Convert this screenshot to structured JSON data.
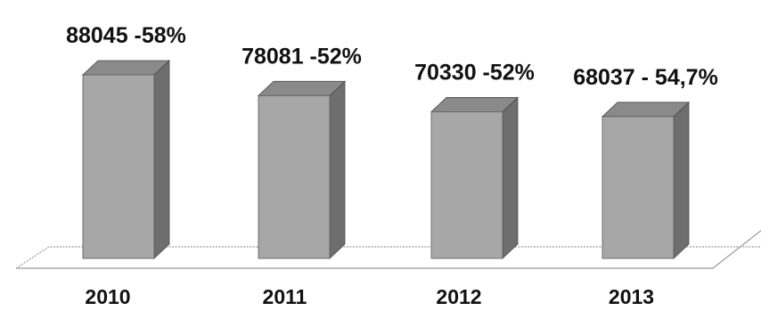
{
  "chart_data": {
    "type": "bar",
    "style": "3d-column",
    "categories": [
      "2010",
      "2011",
      "2012",
      "2013"
    ],
    "values": [
      88045,
      78081,
      70330,
      68037
    ],
    "percentages": [
      "58%",
      "52%",
      "52%",
      "54,7%"
    ],
    "data_labels": [
      "88045 -58%",
      "78081 -52%",
      "70330 -52%",
      "68037 - 54,7%"
    ],
    "title": "",
    "xlabel": "",
    "ylabel": "",
    "grid": false,
    "legend": "none",
    "colors": {
      "bar_front": "#a7a7a7",
      "bar_side": "#6e6e6e",
      "bar_top": "#8a8a8a",
      "floor_edge": "#9a9a9a",
      "text": "#111111"
    }
  }
}
